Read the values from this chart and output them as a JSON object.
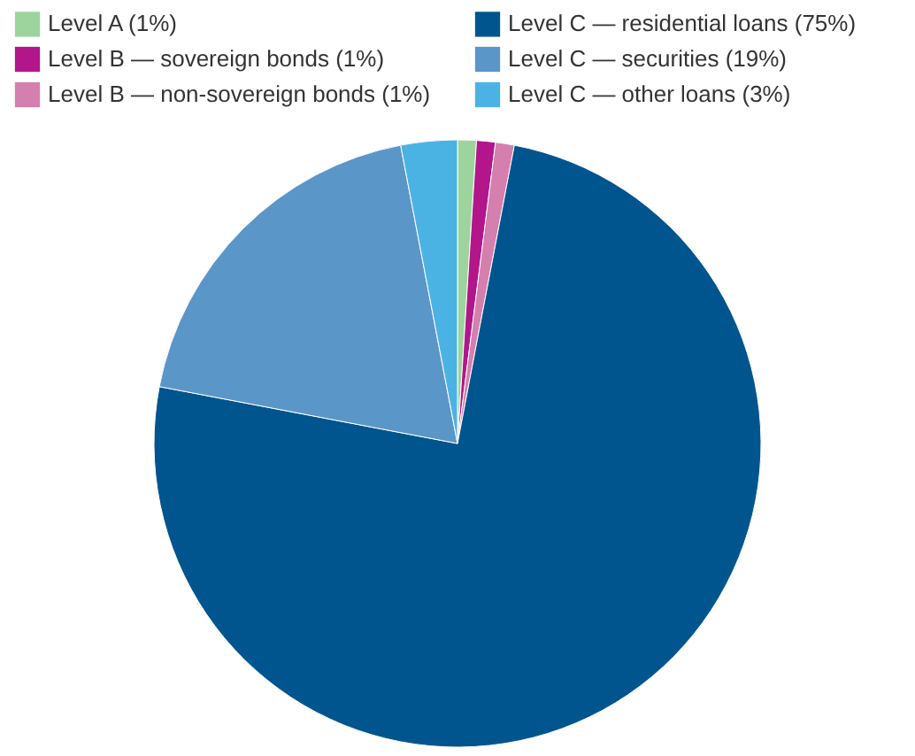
{
  "chart_data": {
    "type": "pie",
    "categories": [
      "Level A (1%)",
      "Level B — sovereign bonds (1%)",
      "Level B — non-sovereign bonds (1%)",
      "Level C — residential loans (75%)",
      "Level C — securities (19%)",
      "Level C — other loans (3%)"
    ],
    "values": [
      1,
      1,
      1,
      75,
      19,
      3
    ],
    "colors": [
      "#9dd49d",
      "#b2168a",
      "#d47fae",
      "#00558f",
      "#5b96c8",
      "#4bb3e4"
    ],
    "legend": "top"
  }
}
